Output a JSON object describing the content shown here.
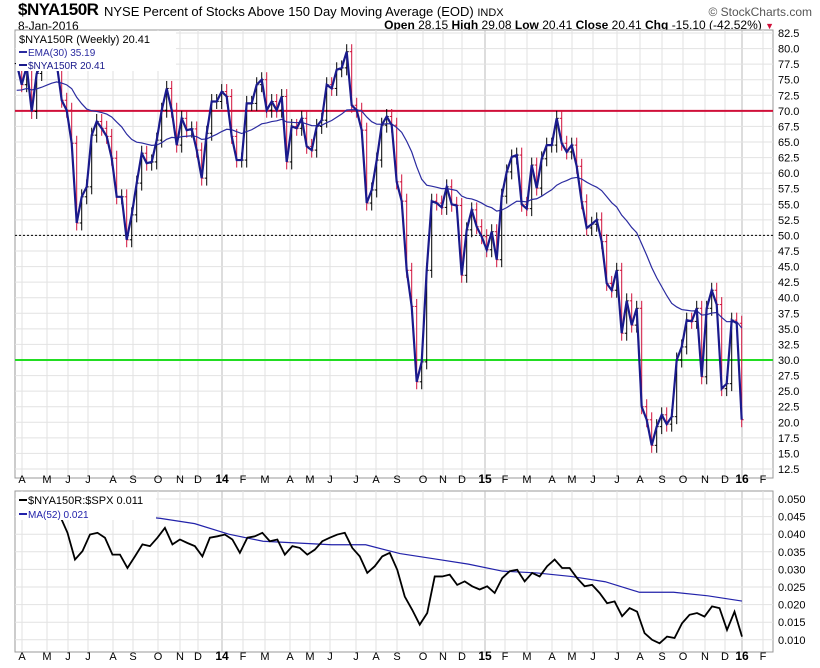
{
  "header": {
    "symbol": "$NYA150R",
    "description": "NYSE Percent of Stocks Above 150 Day Moving Average (EOD)",
    "exchange": "INDX",
    "brand": "© StockCharts.com",
    "date": "8-Jan-2016",
    "open_label": "Open",
    "open": "28.15",
    "high_label": "High",
    "high": "29.08",
    "low_label": "Low",
    "low": "20.41",
    "close_label": "Close",
    "close": "20.41",
    "chg_label": "Chg",
    "chg": "-15.10 (-42.52%)"
  },
  "colors": {
    "price": "#1a1a8c",
    "ema": "#2b2ba0",
    "up": "#000000",
    "down": "#d0103a",
    "line70": "#d0103a",
    "line30": "#22dd22",
    "ratio": "#000000",
    "ma": "#2222aa"
  },
  "chart_data": [
    {
      "type": "line",
      "title": "$NYA150R (Weekly) 20.41",
      "legend": [
        "$NYA150R (Weekly) 20.41",
        "EMA(30) 35.19",
        "$NYA150R 20.41"
      ],
      "ylim": [
        12.5,
        82.5
      ],
      "yticks": [
        82.5,
        80.0,
        77.5,
        75.0,
        72.5,
        70.0,
        67.5,
        65.0,
        62.5,
        60.0,
        57.5,
        55.0,
        52.5,
        50.0,
        47.5,
        45.0,
        42.5,
        40.0,
        37.5,
        35.0,
        32.5,
        30.0,
        27.5,
        25.0,
        22.5,
        20.0,
        17.5,
        15.0,
        12.5
      ],
      "reference_lines": [
        70,
        50,
        30
      ],
      "ema_period": 30,
      "ema_seed": 73,
      "closes": [
        77.6,
        74.2,
        77.1,
        69.9,
        76.0,
        77.6,
        79,
        79,
        77.6,
        71.7,
        70.1,
        64.8,
        52.0,
        56.2,
        57.8,
        66.1,
        68.3,
        67.2,
        65.9,
        62.4,
        56.2,
        56.2,
        49.3,
        53.3,
        58.4,
        63.2,
        61.6,
        61.8,
        65.3,
        70.1,
        73.6,
        70.1,
        64.5,
        68.8,
        66.9,
        67.1,
        63.7,
        59.2,
        66.4,
        71.5,
        71.5,
        73.1,
        72.3,
        65.9,
        62.1,
        62.1,
        71.2,
        71.2,
        74.2,
        75.0,
        70.1,
        71.5,
        70.1,
        72.3,
        61.8,
        67.5,
        67.2,
        68.8,
        64.3,
        63.7,
        67.5,
        68.5,
        74.2,
        73.6,
        76.6,
        76.9,
        79.5,
        70.9,
        70.1,
        66.9,
        55.2,
        57.3,
        62.1,
        67.7,
        69.1,
        67.7,
        58.6,
        55.5,
        44.4,
        38.6,
        26.5,
        29.7,
        44.4,
        55.5,
        55.2,
        54.5,
        57.8,
        55.0,
        54.8,
        43.6,
        50.9,
        54.1,
        51.4,
        49.8,
        47.7,
        50.6,
        46.1,
        56.3,
        60.2,
        62.6,
        62.9,
        55.0,
        54.3,
        61.3,
        57.6,
        62.3,
        64.5,
        64.5,
        68.8,
        64.8,
        63.4,
        64.5,
        61.1,
        55.4,
        51.2,
        51.8,
        52.5,
        49.0,
        42.3,
        41.2,
        44.4,
        34.3,
        39.5,
        35.6,
        38.3,
        22.5,
        20.4,
        16.3,
        19.3,
        21.2,
        19.7,
        20.9,
        30.0,
        32.1,
        36.4,
        36.2,
        38.3,
        27.3,
        38.3,
        41.2,
        38.9,
        25.4,
        26.2,
        36.4,
        35.9,
        20.41
      ],
      "xticks": [
        "A",
        "M",
        "J",
        "J",
        "A",
        "S",
        "O",
        "N",
        "D",
        "14",
        "F",
        "M",
        "A",
        "M",
        "J",
        "J",
        "A",
        "S",
        "O",
        "N",
        "D",
        "15",
        "F",
        "M",
        "A",
        "M",
        "J",
        "J",
        "A",
        "S",
        "O",
        "N",
        "D",
        "16",
        "F"
      ]
    },
    {
      "type": "line",
      "legend": [
        "$NYA150R:$SPX 0.011",
        "MA(52) 0.021"
      ],
      "ylim": [
        0.005,
        0.052
      ],
      "yticks": [
        0.05,
        0.045,
        0.04,
        0.035,
        0.03,
        0.025,
        0.02,
        0.015,
        0.01
      ],
      "ratio": [
        0.0452,
        0.0404,
        0.0328,
        0.0352,
        0.0399,
        0.0404,
        0.039,
        0.0342,
        0.0342,
        0.0304,
        0.0337,
        0.0371,
        0.0366,
        0.039,
        0.0418,
        0.0371,
        0.0385,
        0.0375,
        0.0366,
        0.0337,
        0.039,
        0.0394,
        0.0399,
        0.0385,
        0.0347,
        0.039,
        0.0394,
        0.0404,
        0.038,
        0.0385,
        0.0342,
        0.0366,
        0.0361,
        0.0342,
        0.0356,
        0.038,
        0.039,
        0.0399,
        0.0404,
        0.0361,
        0.0337,
        0.029,
        0.0309,
        0.0337,
        0.0347,
        0.0299,
        0.0223,
        0.0185,
        0.0143,
        0.0176,
        0.028,
        0.028,
        0.0285,
        0.0256,
        0.0266,
        0.0252,
        0.0243,
        0.0252,
        0.0233,
        0.0275,
        0.0295,
        0.0299,
        0.0266,
        0.029,
        0.028,
        0.0309,
        0.0328,
        0.0304,
        0.0304,
        0.0275,
        0.0252,
        0.0256,
        0.0233,
        0.0204,
        0.0209,
        0.0167,
        0.019,
        0.018,
        0.0119,
        0.01,
        0.009,
        0.0109,
        0.0105,
        0.0147,
        0.0171,
        0.0176,
        0.0166,
        0.0195,
        0.019,
        0.0128,
        0.018,
        0.0109
      ],
      "ma52": [
        0.047,
        0.0455,
        0.0445,
        0.043,
        0.04,
        0.038,
        0.0375,
        0.037,
        0.037,
        0.0345,
        0.033,
        0.0315,
        0.0295,
        0.029,
        0.028,
        0.0265,
        0.0235,
        0.0235,
        0.0225,
        0.021
      ]
    }
  ]
}
